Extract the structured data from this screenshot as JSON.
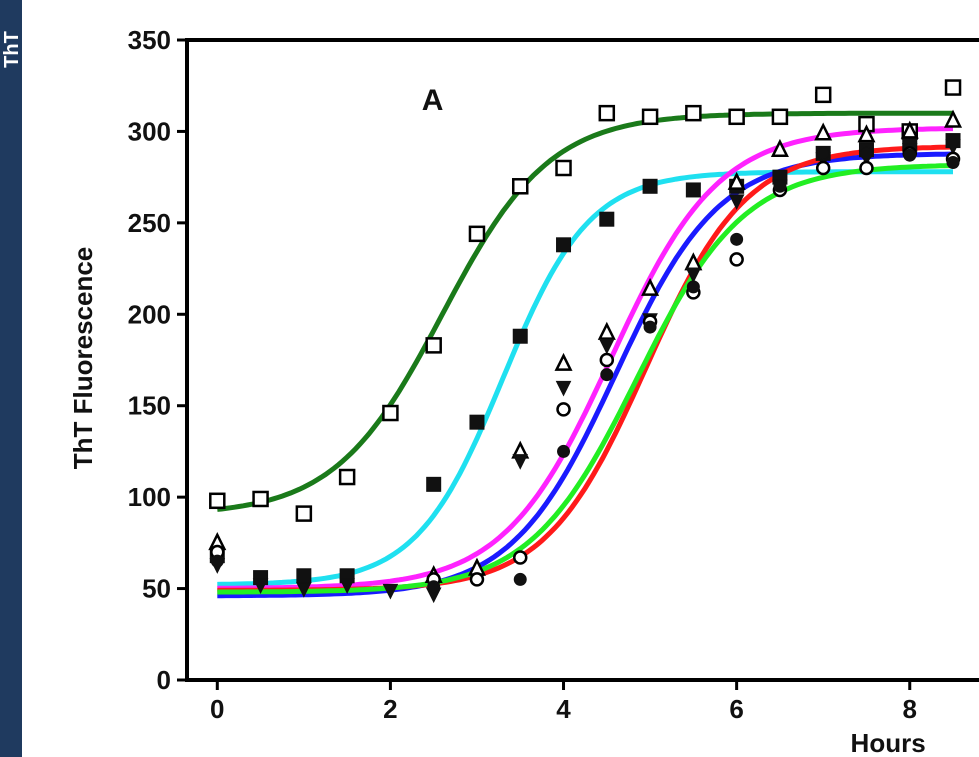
{
  "side_bar": {
    "text": "ThT",
    "color": "#1f3a5f"
  },
  "chart_data": {
    "type": "scatter",
    "panel_label": "A",
    "xlabel": "Hours",
    "ylabel": "ThT Fluorescence",
    "xlim": [
      -0.35,
      8.8
    ],
    "ylim": [
      0,
      350
    ],
    "xticks": [
      0,
      2,
      4,
      6,
      8
    ],
    "yticks": [
      0,
      50,
      100,
      150,
      200,
      250,
      300,
      350
    ],
    "grid": false,
    "legend": "none",
    "fit_curves": [
      {
        "color": "#1a7a1a",
        "bottom": 90,
        "top": 310,
        "midpoint": 2.6,
        "slope": 0.62
      },
      {
        "color": "#1fe0f0",
        "bottom": 52,
        "top": 278,
        "midpoint": 3.3,
        "slope": 0.5
      },
      {
        "color": "#ff22ff",
        "bottom": 50,
        "top": 302,
        "midpoint": 4.55,
        "slope": 0.62
      },
      {
        "color": "#1a1aff",
        "bottom": 46,
        "top": 288,
        "midpoint": 4.6,
        "slope": 0.6
      },
      {
        "color": "#ff1a1a",
        "bottom": 49,
        "top": 292,
        "midpoint": 4.95,
        "slope": 0.58
      },
      {
        "color": "#22ee22",
        "bottom": 48,
        "top": 282,
        "midpoint": 4.85,
        "slope": 0.62
      }
    ],
    "series": [
      {
        "marker": "open-square",
        "points": [
          [
            0,
            98
          ],
          [
            0.5,
            99
          ],
          [
            1,
            91
          ],
          [
            1.5,
            111
          ],
          [
            2,
            146
          ],
          [
            2.5,
            183
          ],
          [
            3,
            244
          ],
          [
            3.5,
            270
          ],
          [
            4,
            280
          ],
          [
            4.5,
            310
          ],
          [
            5,
            308
          ],
          [
            5.5,
            310
          ],
          [
            6,
            308
          ],
          [
            6.5,
            308
          ],
          [
            7,
            320
          ],
          [
            7.5,
            304
          ],
          [
            8,
            300
          ],
          [
            8.5,
            324
          ]
        ]
      },
      {
        "marker": "filled-square",
        "points": [
          [
            0,
            68
          ],
          [
            0.5,
            56
          ],
          [
            1,
            57
          ],
          [
            1.5,
            57
          ],
          [
            2.5,
            107
          ],
          [
            3,
            141
          ],
          [
            3.5,
            188
          ],
          [
            4,
            238
          ],
          [
            4.5,
            252
          ],
          [
            5,
            270
          ],
          [
            5.5,
            268
          ],
          [
            6,
            270
          ],
          [
            6.5,
            275
          ],
          [
            7,
            288
          ],
          [
            7.5,
            290
          ],
          [
            8,
            293
          ],
          [
            8.5,
            295
          ]
        ]
      },
      {
        "marker": "open-triangle",
        "points": [
          [
            0,
            75
          ],
          [
            2.5,
            57
          ],
          [
            3,
            61
          ],
          [
            3.5,
            125
          ],
          [
            4,
            173
          ],
          [
            4.5,
            190
          ],
          [
            5,
            214
          ],
          [
            5.5,
            228
          ],
          [
            6,
            272
          ],
          [
            6.5,
            290
          ],
          [
            7,
            299
          ],
          [
            7.5,
            298
          ],
          [
            8,
            300
          ],
          [
            8.5,
            306
          ]
        ]
      },
      {
        "marker": "filled-triangle-down",
        "points": [
          [
            0,
            63
          ],
          [
            0.5,
            52
          ],
          [
            1,
            50
          ],
          [
            1.5,
            52
          ],
          [
            2,
            49
          ],
          [
            2.5,
            47
          ],
          [
            3.5,
            120
          ],
          [
            4,
            160
          ],
          [
            4.5,
            183
          ],
          [
            5,
            197
          ],
          [
            5.5,
            222
          ],
          [
            6,
            262
          ],
          [
            6.5,
            270
          ],
          [
            7,
            285
          ],
          [
            7.5,
            286
          ],
          [
            8,
            290
          ],
          [
            8.5,
            292
          ]
        ]
      },
      {
        "marker": "open-circle",
        "points": [
          [
            0,
            70
          ],
          [
            2.5,
            55
          ],
          [
            3,
            55
          ],
          [
            3.5,
            67
          ],
          [
            4,
            148
          ],
          [
            4.5,
            175
          ],
          [
            5,
            196
          ],
          [
            5.5,
            212
          ],
          [
            6,
            230
          ],
          [
            6.5,
            268
          ],
          [
            7,
            280
          ],
          [
            7.5,
            280
          ],
          [
            8,
            288
          ],
          [
            8.5,
            285
          ]
        ]
      },
      {
        "marker": "filled-circle",
        "points": [
          [
            0,
            65
          ],
          [
            2.5,
            51
          ],
          [
            3.5,
            55
          ],
          [
            4,
            125
          ],
          [
            4.5,
            167
          ],
          [
            5,
            193
          ],
          [
            5.5,
            215
          ],
          [
            6,
            241
          ],
          [
            6.5,
            270
          ],
          [
            7,
            288
          ],
          [
            7.5,
            288
          ],
          [
            8,
            287
          ],
          [
            8.5,
            283
          ]
        ]
      }
    ]
  }
}
